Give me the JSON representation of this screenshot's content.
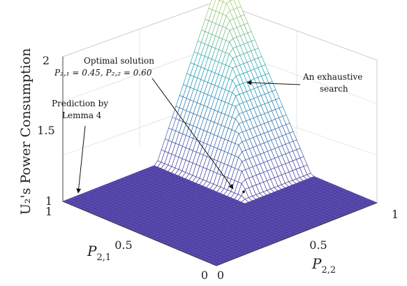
{
  "chart_data": {
    "type": "surface3d",
    "zlabel": "U₂'s Power Consumption",
    "xlabel_base": "P",
    "xlabel_sub": "2,1",
    "ylabel_base": "P",
    "ylabel_sub": "2,2",
    "x_ticks": [
      "0",
      "0.5",
      "1"
    ],
    "y_ticks": [
      "0",
      "0.5",
      "1"
    ],
    "z_ticks": [
      "1",
      "1.5",
      "2"
    ],
    "xlim": [
      0,
      1
    ],
    "ylim": [
      0,
      1
    ],
    "zlim": [
      1,
      2
    ],
    "floor_value": 1,
    "peak": {
      "x": 1,
      "y": 1,
      "z": 2.2
    },
    "optimal": {
      "x": 0.45,
      "y": 0.6,
      "z": 1.05
    },
    "surface_colors": {
      "low": "#4b3b9c",
      "mid": "#21a3b8",
      "high": "#f4e542"
    },
    "annotations": {
      "optimal_title": "Optimal solution",
      "optimal_values": "P₂,₁ = 0.45, P₂,₂ = 0.60",
      "exhaustive_line1": "An exhaustive",
      "exhaustive_line2": "search",
      "prediction_line1": "Prediction by",
      "prediction_line2": "Lemma 4"
    }
  }
}
